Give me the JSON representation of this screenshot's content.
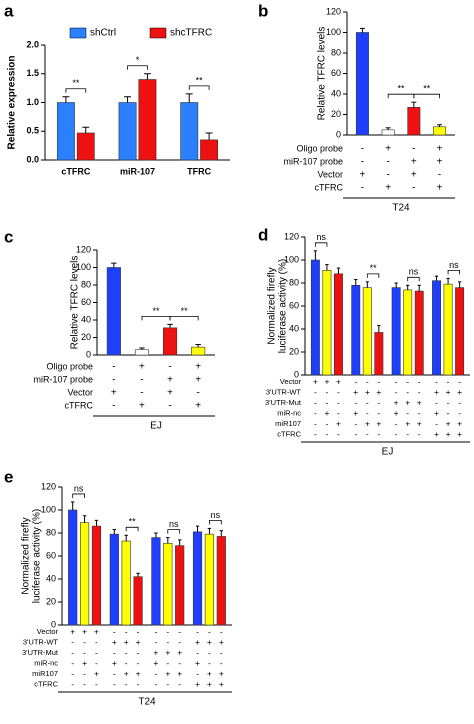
{
  "chart_data": [
    {
      "type": "bar",
      "panel_label": "a",
      "ylabel": "Relative expression",
      "categories": [
        "cTFRC",
        "miR-107",
        "TFRC"
      ],
      "series": [
        {
          "name": "shCtrl",
          "color": "#2a80ff",
          "values": [
            1.0,
            1.0,
            1.0
          ],
          "errors": [
            0.1,
            0.1,
            0.15
          ]
        },
        {
          "name": "shcTFRC",
          "color": "#ee1111",
          "values": [
            0.47,
            1.4,
            0.35
          ],
          "errors": [
            0.1,
            0.1,
            0.12
          ]
        }
      ],
      "ylim": [
        0,
        2
      ],
      "yticks": [
        {
          "value": 0,
          "label": "0.0"
        },
        {
          "value": 0.5,
          "label": "0.5"
        },
        {
          "value": 1,
          "label": "1.0"
        },
        {
          "value": 1.5,
          "label": "1.5"
        },
        {
          "value": 2,
          "label": "2.0"
        }
      ],
      "significance": [
        "**",
        "*",
        "**"
      ]
    },
    {
      "type": "bar",
      "panel_label": "b",
      "ylabel": "Relative TFRC levels",
      "series": [
        {
          "values": [
            100,
            5,
            27,
            8
          ],
          "errors": [
            4,
            2,
            5,
            2
          ]
        }
      ],
      "colors": [
        "#1f3fff",
        "#ffffff",
        "#ee1111",
        "#ffff00"
      ],
      "ylim": [
        0,
        120
      ],
      "yticks": [
        0,
        20,
        40,
        60,
        80,
        100,
        120
      ],
      "significance": [
        "**",
        "**"
      ],
      "conditions": [
        {
          "name": "Oligo probe",
          "values": [
            "-",
            "+",
            "-",
            "+"
          ]
        },
        {
          "name": "miR-107 probe",
          "values": [
            "-",
            "-",
            "+",
            "+"
          ]
        },
        {
          "name": "Vector",
          "values": [
            "+",
            "-",
            "+",
            "-"
          ]
        },
        {
          "name": "cTFRC",
          "values": [
            "-",
            "+",
            "-",
            "+"
          ]
        }
      ],
      "group_label": "T24"
    },
    {
      "type": "bar",
      "panel_label": "c",
      "ylabel": "Relative TFRC levels",
      "series": [
        {
          "values": [
            100,
            6,
            31,
            9
          ],
          "errors": [
            5,
            2,
            4,
            3
          ]
        }
      ],
      "colors": [
        "#1f3fff",
        "#ffffff",
        "#ee1111",
        "#ffff00"
      ],
      "ylim": [
        0,
        120
      ],
      "yticks": [
        0,
        20,
        40,
        60,
        80,
        100,
        120
      ],
      "significance": [
        "**",
        "**"
      ],
      "conditions": [
        {
          "name": "Oligo probe",
          "values": [
            "-",
            "+",
            "-",
            "+"
          ]
        },
        {
          "name": "miR-107 probe",
          "values": [
            "-",
            "-",
            "+",
            "+"
          ]
        },
        {
          "name": "Vector",
          "values": [
            "+",
            "-",
            "+",
            "-"
          ]
        },
        {
          "name": "cTFRC",
          "values": [
            "-",
            "+",
            "-",
            "+"
          ]
        }
      ],
      "group_label": "EJ"
    },
    {
      "type": "bar",
      "panel_label": "d",
      "ylabel": [
        "Normalized firefly",
        "luciferase activity (%)"
      ],
      "series": [
        {
          "values": [
            100,
            91,
            88,
            78,
            76,
            37,
            76,
            74,
            73,
            82,
            79,
            76
          ],
          "errors": [
            8,
            5,
            5,
            5,
            5,
            6,
            4,
            4,
            5,
            4,
            5,
            5
          ]
        }
      ],
      "colors": [
        "#1f3fff",
        "#ffff00",
        "#ee1111",
        "#1f3fff",
        "#ffff00",
        "#ee1111",
        "#1f3fff",
        "#ffff00",
        "#ee1111",
        "#1f3fff",
        "#ffff00",
        "#ee1111"
      ],
      "ylim": [
        0,
        120
      ],
      "yticks": [
        0,
        20,
        40,
        60,
        80,
        100,
        120
      ],
      "significance": [
        "ns",
        "**",
        "ns",
        "ns"
      ],
      "conditions": [
        {
          "name": "Vector",
          "values": [
            "+",
            "+",
            "+",
            "-",
            "-",
            "-",
            "-",
            "-",
            "-",
            "-",
            "-",
            "-"
          ]
        },
        {
          "name": "3'UTR-WT",
          "values": [
            "-",
            "-",
            "-",
            "+",
            "+",
            "+",
            "-",
            "-",
            "-",
            "+",
            "+",
            "+"
          ]
        },
        {
          "name": "3'UTR-Mut",
          "values": [
            "-",
            "-",
            "-",
            "-",
            "-",
            "-",
            "+",
            "+",
            "+",
            "-",
            "-",
            "-"
          ]
        },
        {
          "name": "miR-nc",
          "values": [
            "-",
            "+",
            "-",
            "+",
            "-",
            "-",
            "+",
            "-",
            "-",
            "+",
            "-",
            "-"
          ]
        },
        {
          "name": "miR107",
          "values": [
            "-",
            "-",
            "+",
            "-",
            "+",
            "+",
            "-",
            "+",
            "+",
            "-",
            "+",
            "+"
          ]
        },
        {
          "name": "cTFRC",
          "values": [
            "-",
            "-",
            "-",
            "-",
            "-",
            "-",
            "-",
            "-",
            "-",
            "+",
            "+",
            "+"
          ]
        }
      ],
      "group_label": "EJ"
    },
    {
      "type": "bar",
      "panel_label": "e",
      "ylabel": [
        "Normalized firefly",
        "luciferase activity (%)"
      ],
      "series": [
        {
          "values": [
            100,
            89,
            86,
            79,
            73,
            42,
            76,
            71,
            69,
            81,
            79,
            77
          ],
          "errors": [
            7,
            6,
            5,
            4,
            5,
            3,
            4,
            5,
            5,
            5,
            5,
            5
          ]
        }
      ],
      "colors": [
        "#1f3fff",
        "#ffff00",
        "#ee1111",
        "#1f3fff",
        "#ffff00",
        "#ee1111",
        "#1f3fff",
        "#ffff00",
        "#ee1111",
        "#1f3fff",
        "#ffff00",
        "#ee1111"
      ],
      "ylim": [
        0,
        120
      ],
      "yticks": [
        0,
        20,
        40,
        60,
        80,
        100,
        120
      ],
      "significance": [
        "ns",
        "**",
        "ns",
        "ns"
      ],
      "conditions": [
        {
          "name": "Vector",
          "values": [
            "+",
            "+",
            "+",
            "-",
            "-",
            "-",
            "-",
            "-",
            "-",
            "-",
            "-",
            "-"
          ]
        },
        {
          "name": "3'UTR-WT",
          "values": [
            "-",
            "-",
            "-",
            "+",
            "+",
            "+",
            "-",
            "-",
            "-",
            "+",
            "+",
            "+"
          ]
        },
        {
          "name": "3'UTR-Mut",
          "values": [
            "-",
            "-",
            "-",
            "-",
            "-",
            "-",
            "+",
            "+",
            "+",
            "-",
            "-",
            "-"
          ]
        },
        {
          "name": "miR-nc",
          "values": [
            "-",
            "+",
            "-",
            "+",
            "-",
            "-",
            "+",
            "-",
            "-",
            "+",
            "-",
            "-"
          ]
        },
        {
          "name": "miR107",
          "values": [
            "-",
            "-",
            "+",
            "-",
            "+",
            "+",
            "-",
            "+",
            "+",
            "-",
            "+",
            "+"
          ]
        },
        {
          "name": "cTFRC",
          "values": [
            "-",
            "-",
            "-",
            "-",
            "-",
            "-",
            "-",
            "-",
            "-",
            "+",
            "+",
            "+"
          ]
        }
      ],
      "group_label": "T24"
    }
  ]
}
